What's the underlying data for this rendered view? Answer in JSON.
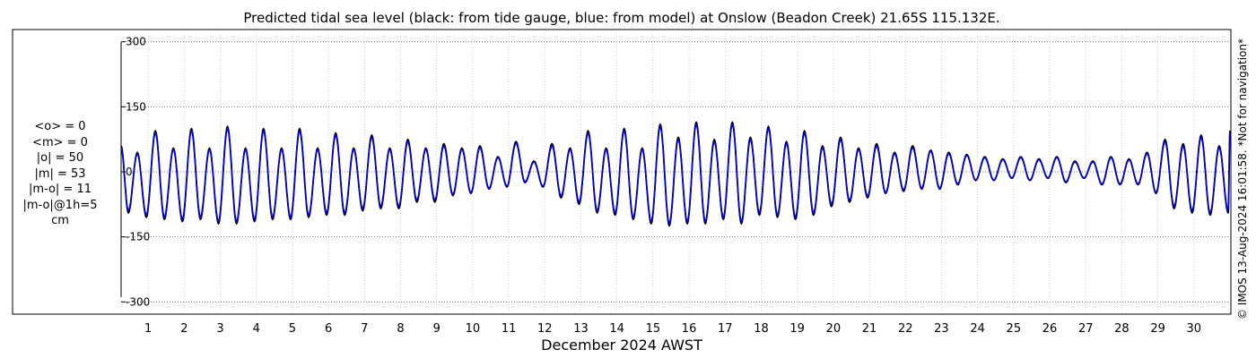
{
  "chart_data": {
    "type": "line",
    "title": "Predicted tidal sea level (black: from tide gauge, blue: from model) at Onslow (Beadon Creek) 21.65S 115.132E.",
    "xlabel": "December 2024 AWST",
    "ylabel": "",
    "xlim": [
      0.25,
      31.0
    ],
    "ylim": [
      -320,
      320
    ],
    "yticks": [
      -300,
      -150,
      0,
      150,
      300
    ],
    "ytick_labels": [
      "-300",
      "-150",
      "0",
      "150",
      "300"
    ],
    "xticks": [
      1,
      2,
      3,
      4,
      5,
      6,
      7,
      8,
      9,
      10,
      11,
      12,
      13,
      14,
      15,
      16,
      17,
      18,
      19,
      20,
      21,
      22,
      23,
      24,
      25,
      26,
      27,
      28,
      29,
      30
    ],
    "xtick_labels": [
      "1",
      "2",
      "3",
      "4",
      "5",
      "6",
      "7",
      "8",
      "9",
      "10",
      "11",
      "12",
      "13",
      "14",
      "15",
      "16",
      "17",
      "18",
      "19",
      "20",
      "21",
      "22",
      "23",
      "24",
      "25",
      "26",
      "27",
      "28",
      "29",
      "30"
    ],
    "grid": true,
    "series": [
      {
        "name": "from tide gauge",
        "color": "#000000",
        "x": [
          0.25,
          0.45,
          0.7,
          0.95,
          1.2,
          1.45,
          1.7,
          1.95,
          2.2,
          2.45,
          2.7,
          2.95,
          3.2,
          3.45,
          3.7,
          3.95,
          4.2,
          4.45,
          4.7,
          4.95,
          5.2,
          5.45,
          5.7,
          5.95,
          6.2,
          6.45,
          6.7,
          6.95,
          7.2,
          7.45,
          7.7,
          7.95,
          8.2,
          8.45,
          8.7,
          8.95,
          9.2,
          9.45,
          9.7,
          9.95,
          10.2,
          10.45,
          10.7,
          10.95,
          11.2,
          11.45,
          11.7,
          11.95,
          12.2,
          12.45,
          12.7,
          12.95,
          13.2,
          13.45,
          13.7,
          13.95,
          14.2,
          14.45,
          14.7,
          14.95,
          15.2,
          15.45,
          15.7,
          15.95,
          16.2,
          16.45,
          16.7,
          16.95,
          17.2,
          17.45,
          17.7,
          17.95,
          18.2,
          18.45,
          18.7,
          18.95,
          19.2,
          19.45,
          19.7,
          19.95,
          20.2,
          20.45,
          20.7,
          20.95,
          21.2,
          21.45,
          21.7,
          21.95,
          22.2,
          22.45,
          22.7,
          22.95,
          23.2,
          23.45,
          23.7,
          23.95,
          24.2,
          24.45,
          24.7,
          24.95,
          25.2,
          25.45,
          25.7,
          25.95,
          26.2,
          26.45,
          26.7,
          26.95,
          27.2,
          27.45,
          27.7,
          27.95,
          28.2,
          28.45,
          28.7,
          28.95,
          29.2,
          29.45,
          29.7,
          29.95,
          30.2,
          30.45,
          30.7,
          30.95,
          31.0
        ],
        "y": [
          60,
          -95,
          45,
          -105,
          95,
          -110,
          55,
          -115,
          100,
          -110,
          55,
          -120,
          105,
          -120,
          55,
          -115,
          100,
          -110,
          55,
          -110,
          100,
          -105,
          55,
          -100,
          90,
          -100,
          55,
          -90,
          85,
          -85,
          55,
          -85,
          75,
          -70,
          55,
          -70,
          65,
          -55,
          55,
          -50,
          60,
          -40,
          35,
          -35,
          70,
          -25,
          25,
          -35,
          65,
          -60,
          55,
          -75,
          95,
          -95,
          55,
          -100,
          100,
          -110,
          55,
          -120,
          110,
          -125,
          80,
          -120,
          115,
          -120,
          75,
          -110,
          115,
          -120,
          80,
          -100,
          105,
          -105,
          70,
          -110,
          95,
          -100,
          60,
          -80,
          80,
          -70,
          55,
          -60,
          65,
          -50,
          45,
          -45,
          60,
          -40,
          50,
          -40,
          45,
          -30,
          40,
          -20,
          35,
          -20,
          30,
          -15,
          35,
          -20,
          30,
          -15,
          35,
          -25,
          25,
          -15,
          25,
          -30,
          35,
          -30,
          30,
          -30,
          45,
          -50,
          75,
          -85,
          65,
          -95,
          85,
          -100,
          60,
          -95,
          95
        ]
      },
      {
        "name": "from model",
        "color": "#0000cc",
        "x": [
          0.25,
          0.45,
          0.7,
          0.95,
          1.2,
          1.45,
          1.7,
          1.95,
          2.2,
          2.45,
          2.7,
          2.95,
          3.2,
          3.45,
          3.7,
          3.95,
          4.2,
          4.45,
          4.7,
          4.95,
          5.2,
          5.45,
          5.7,
          5.95,
          6.2,
          6.45,
          6.7,
          6.95,
          7.2,
          7.45,
          7.7,
          7.95,
          8.2,
          8.45,
          8.7,
          8.95,
          9.2,
          9.45,
          9.7,
          9.95,
          10.2,
          10.45,
          10.7,
          10.95,
          11.2,
          11.45,
          11.7,
          11.95,
          12.2,
          12.45,
          12.7,
          12.95,
          13.2,
          13.45,
          13.7,
          13.95,
          14.2,
          14.45,
          14.7,
          14.95,
          15.2,
          15.45,
          15.7,
          15.95,
          16.2,
          16.45,
          16.7,
          16.95,
          17.2,
          17.45,
          17.7,
          17.95,
          18.2,
          18.45,
          18.7,
          18.95,
          19.2,
          19.45,
          19.7,
          19.95,
          20.2,
          20.45,
          20.7,
          20.95,
          21.2,
          21.45,
          21.7,
          21.95,
          22.2,
          22.45,
          22.7,
          22.95,
          23.2,
          23.45,
          23.7,
          23.95,
          24.2,
          24.45,
          24.7,
          24.95,
          25.2,
          25.45,
          25.7,
          25.95,
          26.2,
          26.45,
          26.7,
          26.95,
          27.2,
          27.45,
          27.7,
          27.95,
          28.2,
          28.45,
          28.7,
          28.95,
          29.2,
          29.45,
          29.7,
          29.95,
          30.2,
          30.45,
          30.7,
          30.95,
          31.0
        ],
        "y": [
          55,
          -90,
          42,
          -100,
          90,
          -105,
          52,
          -110,
          95,
          -105,
          52,
          -115,
          100,
          -115,
          52,
          -110,
          95,
          -105,
          52,
          -105,
          95,
          -100,
          52,
          -95,
          85,
          -95,
          52,
          -85,
          80,
          -80,
          52,
          -80,
          70,
          -65,
          52,
          -65,
          60,
          -52,
          52,
          -48,
          56,
          -38,
          33,
          -33,
          66,
          -23,
          23,
          -33,
          60,
          -56,
          52,
          -70,
          90,
          -90,
          52,
          -95,
          95,
          -105,
          52,
          -115,
          105,
          -120,
          75,
          -115,
          110,
          -115,
          70,
          -105,
          110,
          -115,
          75,
          -95,
          100,
          -100,
          66,
          -105,
          90,
          -95,
          56,
          -75,
          75,
          -66,
          52,
          -56,
          60,
          -48,
          42,
          -42,
          56,
          -38,
          48,
          -38,
          42,
          -28,
          38,
          -19,
          33,
          -19,
          28,
          -14,
          33,
          -19,
          28,
          -14,
          33,
          -23,
          23,
          -14,
          23,
          -28,
          33,
          -28,
          28,
          -28,
          42,
          -48,
          70,
          -80,
          60,
          -90,
          80,
          -95,
          56,
          -90,
          90
        ]
      }
    ],
    "annotations": [
      "<o> = 0",
      "<m> = 0",
      "|o| = 50",
      "|m| = 53",
      "|m-o| = 11",
      "|m-o|@1h=5",
      "cm"
    ],
    "side_note": "© IMOS 13-Aug-2024 16:01:58. *Not for navigation*"
  }
}
